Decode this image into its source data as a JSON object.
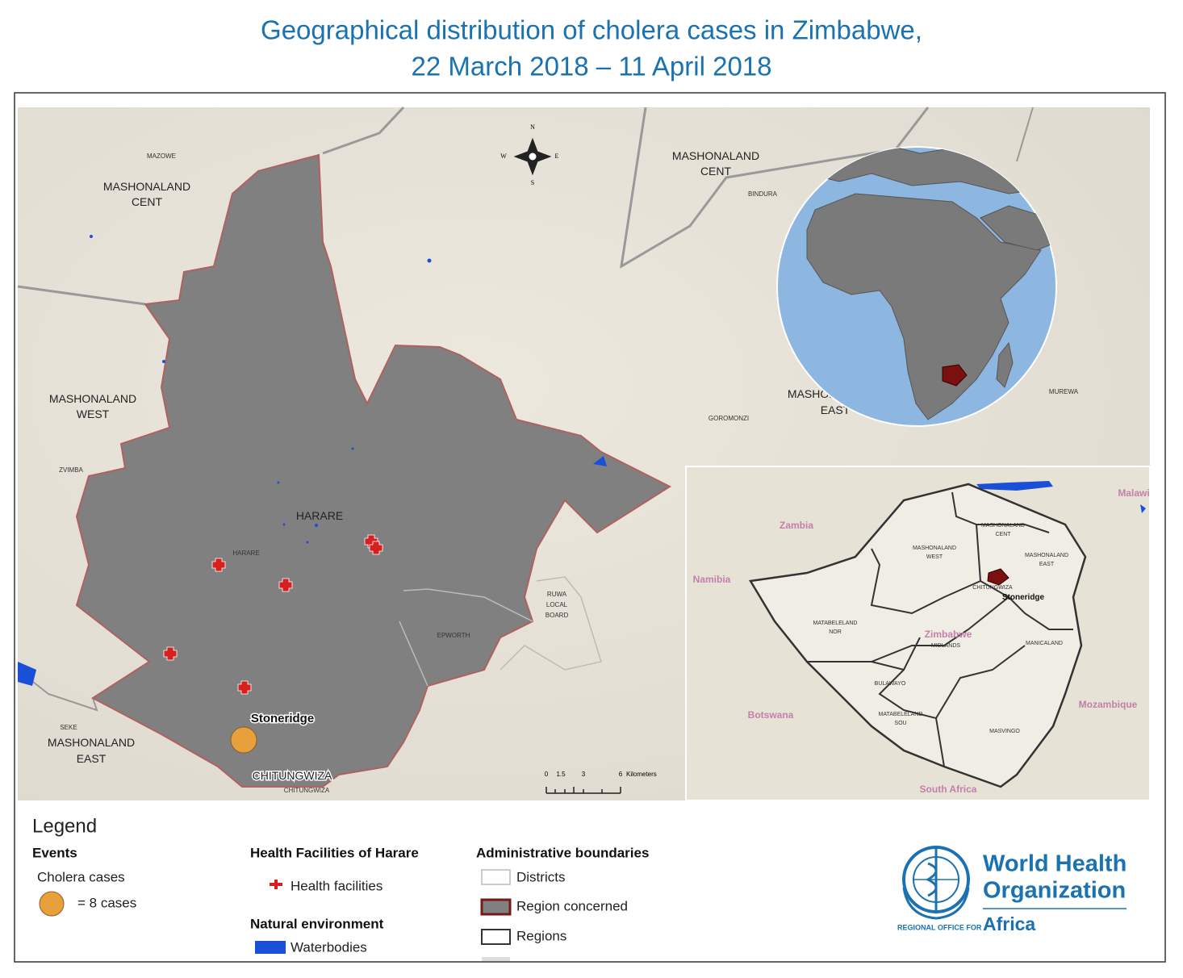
{
  "title": [
    "Geographical distribution of cholera cases in Zimbabwe,",
    "22 March 2018 – 11 April 2018"
  ],
  "main_map": {
    "compass": [
      "N",
      "S",
      "E",
      "W"
    ],
    "labels": [
      {
        "lines": [
          "MAZOWE"
        ]
      },
      {
        "lines": [
          "MASHONALAND",
          "CENT"
        ]
      },
      {
        "lines": [
          "MASHONALAND",
          "WEST"
        ]
      },
      {
        "lines": [
          "ZVIMBA"
        ]
      },
      {
        "lines": [
          "HARARE"
        ]
      },
      {
        "lines": [
          "HARARE"
        ]
      },
      {
        "lines": [
          "RUWA",
          "LOCAL",
          "BOARD"
        ]
      },
      {
        "lines": [
          "EPWORTH"
        ]
      },
      {
        "lines": [
          "Stoneridge"
        ]
      },
      {
        "lines": [
          "SEKE"
        ]
      },
      {
        "lines": [
          "MASHONALAND",
          "EAST"
        ]
      },
      {
        "lines": [
          "CHITUNGWIZA"
        ]
      },
      {
        "lines": [
          "CHITUNGWIZA"
        ]
      },
      {
        "lines": [
          "MASHONALAND",
          "CENT"
        ]
      },
      {
        "lines": [
          "BINDURA"
        ]
      },
      {
        "lines": [
          "GOROMONZI"
        ]
      },
      {
        "lines": [
          "MASHONALAND",
          "EAST"
        ]
      },
      {
        "lines": [
          "MUREWA"
        ]
      }
    ],
    "scale": {
      "ticks": [
        "0",
        "1.5",
        "3",
        "6"
      ],
      "unit": "Kilometers"
    }
  },
  "inset_map": {
    "countries": [
      "Zambia",
      "Malawi",
      "Namibia",
      "Botswana",
      "Zimbabwe",
      "Mozambique",
      "South Africa"
    ],
    "labels": [
      {
        "lines": [
          "MASHONALAND",
          "CENT"
        ]
      },
      {
        "lines": [
          "MASHONALAND",
          "WEST"
        ]
      },
      {
        "lines": [
          "MASHONALAND",
          "EAST"
        ]
      },
      {
        "lines": [
          "CHITUNGWIZA"
        ]
      },
      {
        "lines": [
          "Stoneridge"
        ]
      },
      {
        "lines": [
          "MATABELELAND",
          "NOR"
        ]
      },
      {
        "lines": [
          "MIDLANDS"
        ]
      },
      {
        "lines": [
          "MANICALAND"
        ]
      },
      {
        "lines": [
          "BULAWAYO"
        ]
      },
      {
        "lines": [
          "MATABELELAND",
          "SOU"
        ]
      },
      {
        "lines": [
          "MASVINGO"
        ]
      }
    ]
  },
  "legend": {
    "heading": "Legend",
    "events": {
      "title": "Events",
      "subtitle": "Cholera cases",
      "item": "= 8 cases"
    },
    "health": {
      "title": "Health Facilities of Harare",
      "item": "Health facilities"
    },
    "natural": {
      "title": "Natural environment",
      "item": "Waterbodies"
    },
    "admin": {
      "title": "Administrative boundaries",
      "items": [
        "Districts",
        "Region concerned",
        "Regions"
      ]
    }
  },
  "logo": {
    "name": [
      "World Health",
      "Organization"
    ],
    "office": "REGIONAL OFFICE FOR",
    "region": "Africa"
  }
}
